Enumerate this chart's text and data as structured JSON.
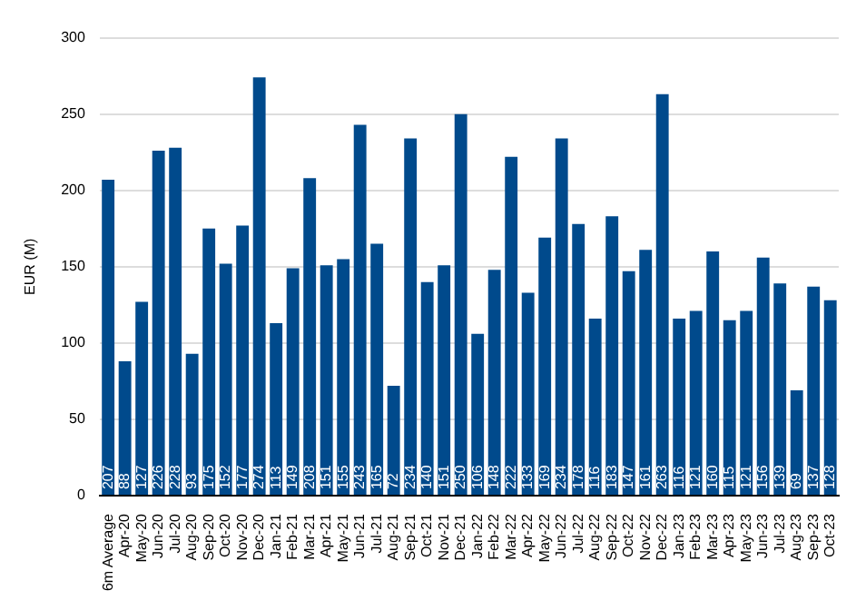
{
  "chart_data": {
    "type": "bar",
    "ylabel": "EUR (M)",
    "categories": [
      "6m Average",
      "Apr-20",
      "May-20",
      "Jun-20",
      "Jul-20",
      "Aug-20",
      "Sep-20",
      "Oct-20",
      "Nov-20",
      "Dec-20",
      "Jan-21",
      "Feb-21",
      "Mar-21",
      "Apr-21",
      "May-21",
      "Jun-21",
      "Jul-21",
      "Aug-21",
      "Sep-21",
      "Oct-21",
      "Nov-21",
      "Dec-21",
      "Jan-22",
      "Feb-22",
      "Mar-22",
      "Apr-22",
      "May-22",
      "Jun-22",
      "Jul-22",
      "Aug-22",
      "Sep-22",
      "Oct-22",
      "Nov-22",
      "Dec-22",
      "Jan-23",
      "Feb-23",
      "Mar-23",
      "Apr-23",
      "May-23",
      "Jun-23",
      "Jul-23",
      "Aug-23",
      "Sep-23",
      "Oct-23"
    ],
    "values": [
      207,
      88,
      127,
      226,
      228,
      93,
      175,
      152,
      177,
      274,
      113,
      149,
      208,
      151,
      155,
      243,
      165,
      72,
      234,
      140,
      151,
      250,
      106,
      148,
      222,
      133,
      169,
      234,
      178,
      116,
      183,
      147,
      161,
      263,
      116,
      121,
      160,
      115,
      121,
      156,
      139,
      69,
      137,
      128
    ],
    "color": "#004a8c",
    "ylim": [
      0,
      300
    ],
    "yticks": [
      0,
      50,
      100,
      150,
      200,
      250,
      300
    ],
    "grid": "y",
    "data_labels": true
  }
}
